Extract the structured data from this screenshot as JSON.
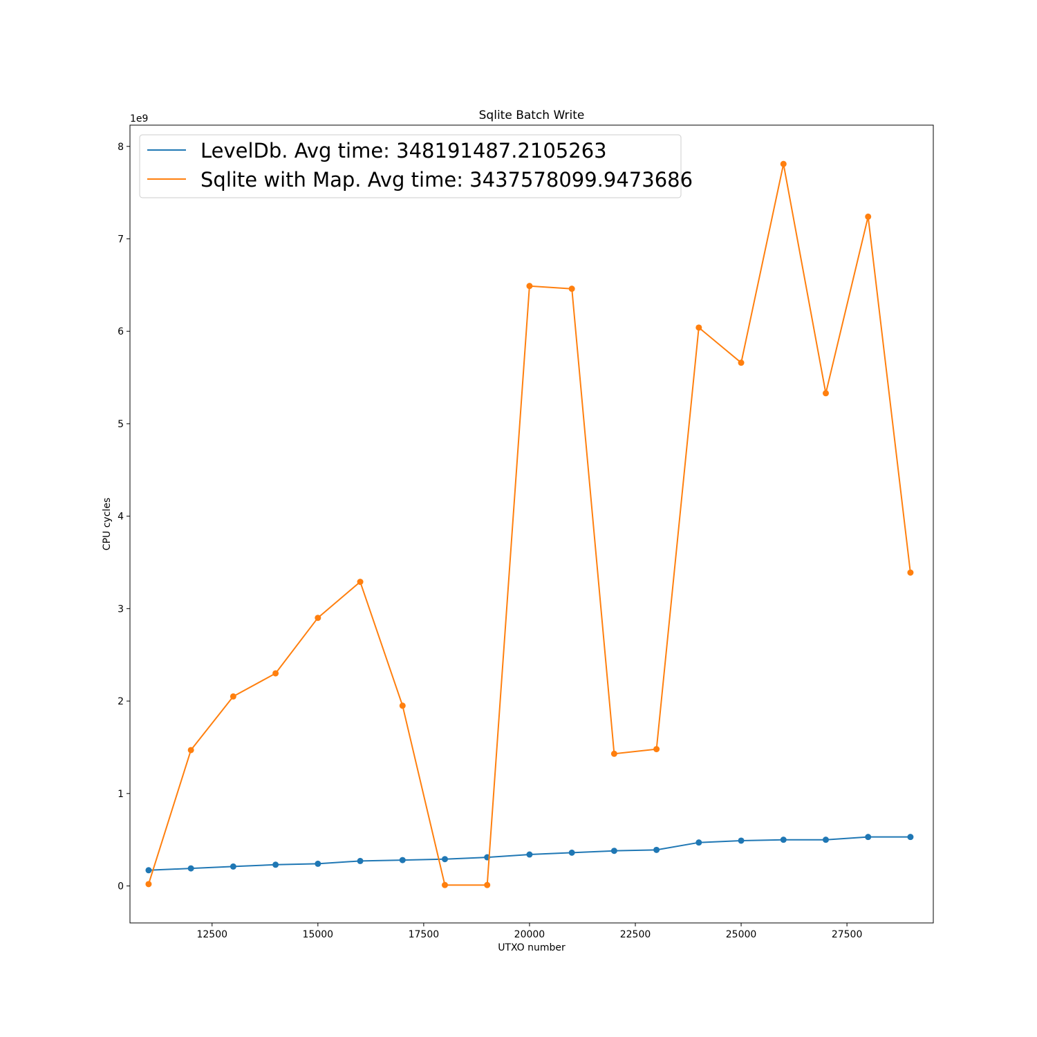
{
  "chart_data": {
    "type": "line",
    "title": "Sqlite Batch Write",
    "xlabel": "UTXO number",
    "ylabel": "CPU cycles",
    "y_offset_label": "1e9",
    "xlim": [
      10560,
      29540
    ],
    "ylim": [
      -0.4,
      8.23
    ],
    "x_ticks": [
      12500,
      15000,
      17500,
      20000,
      22500,
      25000,
      27500
    ],
    "y_ticks": [
      0,
      1,
      2,
      3,
      4,
      5,
      6,
      7,
      8
    ],
    "legend_position": "upper-left",
    "grid": false,
    "markers": true,
    "x": [
      11000,
      12000,
      13000,
      14000,
      15000,
      16000,
      17000,
      18000,
      19000,
      20000,
      21000,
      22000,
      23000,
      24000,
      25000,
      26000,
      27000,
      28000,
      29000
    ],
    "series": [
      {
        "name": "LevelDb. Avg time: 348191487.2105263",
        "color": "#1f77b4",
        "values": [
          0.17,
          0.19,
          0.21,
          0.23,
          0.24,
          0.27,
          0.28,
          0.29,
          0.31,
          0.34,
          0.36,
          0.38,
          0.39,
          0.47,
          0.49,
          0.5,
          0.5,
          0.53,
          0.53
        ]
      },
      {
        "name": "Sqlite with Map. Avg time: 3437578099.9473686",
        "color": "#ff7f0e",
        "values": [
          0.02,
          1.47,
          2.05,
          2.3,
          2.9,
          3.29,
          1.95,
          0.01,
          0.01,
          6.49,
          6.46,
          1.43,
          1.48,
          6.04,
          5.66,
          7.81,
          5.33,
          7.24,
          3.39
        ]
      }
    ]
  }
}
